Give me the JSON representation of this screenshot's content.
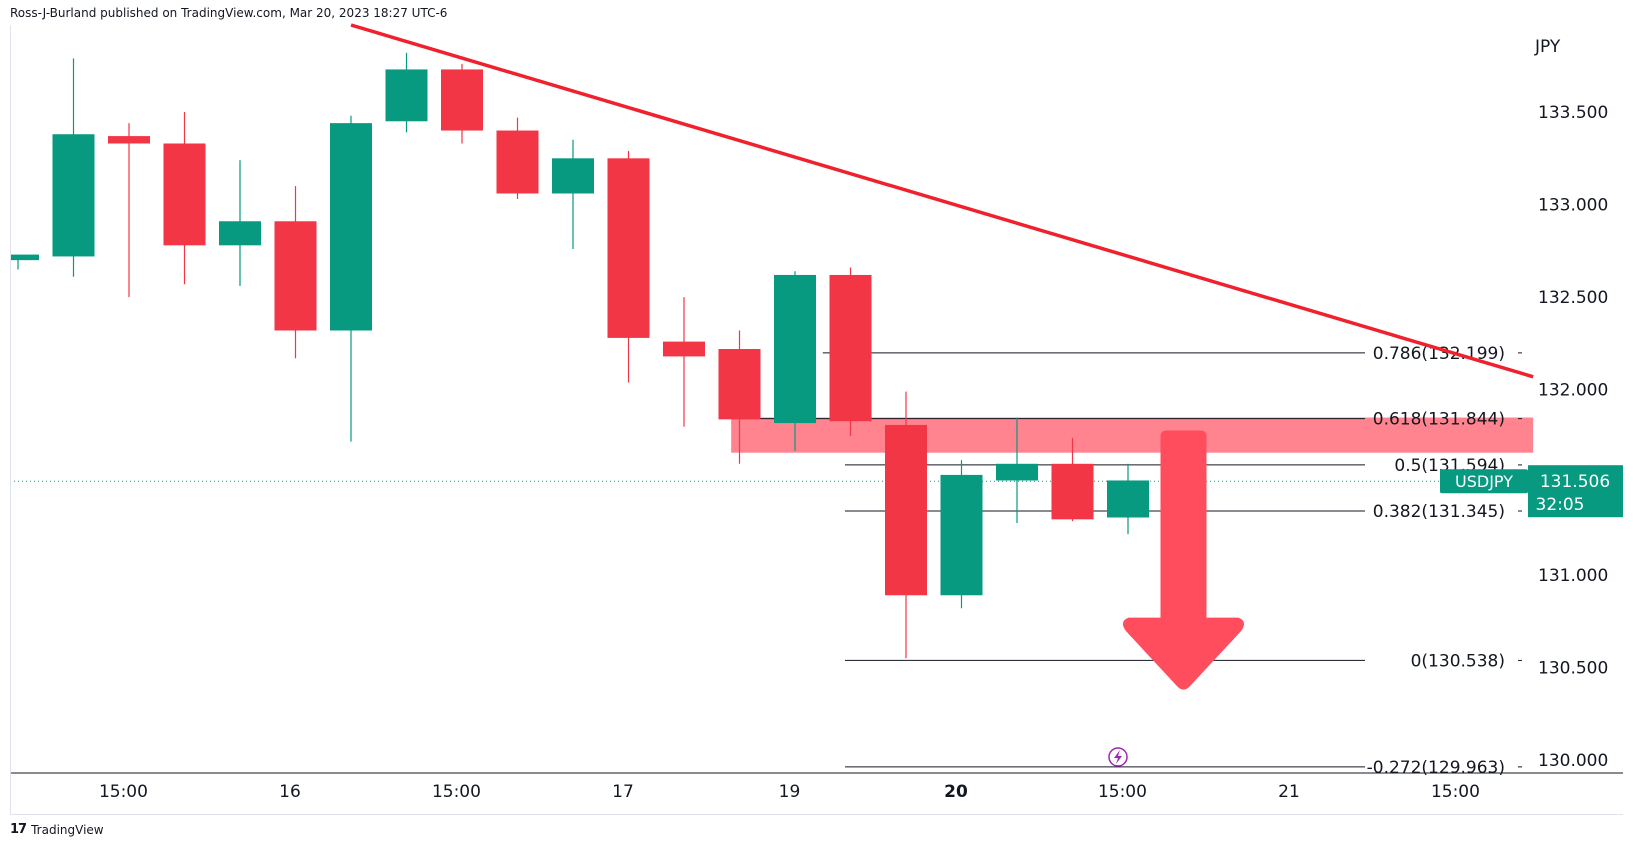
{
  "header": {
    "attribution": "Ross-J-Burland published on TradingView.com, Mar 20, 2023 18:27 UTC-6"
  },
  "footer": {
    "brand": "TradingView",
    "logo_text": "17"
  },
  "colors": {
    "up": "#089981",
    "down": "#f23645",
    "trendline": "#f0202c",
    "zone": "#ff7a85",
    "arrow": "#ff4d5e",
    "grid_text": "#131722",
    "axis": "#131722"
  },
  "chart_data": {
    "type": "candlestick",
    "symbol": "USDJPY",
    "currency": "JPY",
    "ylim": [
      129.93,
      133.97
    ],
    "y_ticks": [
      {
        "value": 133.5,
        "label": "133.500"
      },
      {
        "value": 133.0,
        "label": "133.000"
      },
      {
        "value": 132.5,
        "label": "132.500"
      },
      {
        "value": 132.0,
        "label": "132.000"
      },
      {
        "value": 131.0,
        "label": "131.000"
      },
      {
        "value": 130.5,
        "label": "130.500"
      },
      {
        "value": 130.0,
        "label": "130.000"
      }
    ],
    "x_ticks": [
      {
        "index": 1.9,
        "label": "15:00",
        "bold": false
      },
      {
        "index": 4.9,
        "label": "16",
        "bold": false
      },
      {
        "index": 7.9,
        "label": "15:00",
        "bold": false
      },
      {
        "index": 10.9,
        "label": "17",
        "bold": false
      },
      {
        "index": 13.9,
        "label": "19",
        "bold": false
      },
      {
        "index": 16.9,
        "label": "20",
        "bold": true
      },
      {
        "index": 19.9,
        "label": "15:00",
        "bold": false
      },
      {
        "index": 22.9,
        "label": "21",
        "bold": false
      },
      {
        "index": 25.9,
        "label": "15:00",
        "bold": false
      }
    ],
    "candles": [
      {
        "o": 132.7,
        "h": 132.73,
        "l": 132.65,
        "c": 132.73
      },
      {
        "o": 132.72,
        "h": 133.79,
        "l": 132.61,
        "c": 133.38
      },
      {
        "o": 133.37,
        "h": 133.44,
        "l": 132.5,
        "c": 133.33
      },
      {
        "o": 133.33,
        "h": 133.5,
        "l": 132.57,
        "c": 132.78
      },
      {
        "o": 132.78,
        "h": 133.24,
        "l": 132.56,
        "c": 132.91
      },
      {
        "o": 132.91,
        "h": 133.1,
        "l": 132.17,
        "c": 132.32
      },
      {
        "o": 132.32,
        "h": 133.48,
        "l": 131.72,
        "c": 133.44
      },
      {
        "o": 133.45,
        "h": 133.82,
        "l": 133.39,
        "c": 133.73
      },
      {
        "o": 133.73,
        "h": 133.76,
        "l": 133.33,
        "c": 133.4
      },
      {
        "o": 133.4,
        "h": 133.47,
        "l": 133.03,
        "c": 133.06
      },
      {
        "o": 133.06,
        "h": 133.35,
        "l": 132.76,
        "c": 133.25
      },
      {
        "o": 133.25,
        "h": 133.29,
        "l": 132.04,
        "c": 132.28
      },
      {
        "o": 132.26,
        "h": 132.5,
        "l": 131.8,
        "c": 132.18
      },
      {
        "o": 132.22,
        "h": 132.32,
        "l": 131.6,
        "c": 131.84
      },
      {
        "o": 131.82,
        "h": 132.64,
        "l": 131.67,
        "c": 132.62
      },
      {
        "o": 132.62,
        "h": 132.66,
        "l": 131.75,
        "c": 131.83
      },
      {
        "o": 131.81,
        "h": 131.99,
        "l": 130.55,
        "c": 130.89
      },
      {
        "o": 130.89,
        "h": 131.62,
        "l": 130.82,
        "c": 131.54
      },
      {
        "o": 131.51,
        "h": 131.85,
        "l": 131.28,
        "c": 131.6
      },
      {
        "o": 131.6,
        "h": 131.74,
        "l": 131.29,
        "c": 131.3
      },
      {
        "o": 131.31,
        "h": 131.6,
        "l": 131.22,
        "c": 131.51
      }
    ],
    "fibonacci": [
      {
        "level": "0.786",
        "price": 132.199,
        "label": "0.786(132.199)",
        "start_index": 14.5
      },
      {
        "level": "0.618",
        "price": 131.844,
        "label": "0.618(131.844)",
        "start_index": 13.0
      },
      {
        "level": "0.5",
        "price": 131.594,
        "label": "0.5(131.594)",
        "start_index": 14.9
      },
      {
        "level": "0.382",
        "price": 131.345,
        "label": "0.382(131.345)",
        "start_index": 14.9
      },
      {
        "level": "0",
        "price": 130.538,
        "label": "0(130.538)",
        "start_index": 14.9
      },
      {
        "level": "-0.272",
        "price": 129.963,
        "label": "-0.272(129.963)",
        "start_index": 14.9
      }
    ],
    "resistance_zone": {
      "from_index": 12.85,
      "to_index": 27.3,
      "top": 131.85,
      "bottom": 131.66
    },
    "trendline": {
      "start": {
        "index": 6.0,
        "price": 133.97
      },
      "end": {
        "index": 27.3,
        "price": 132.07
      }
    },
    "arrow": {
      "index": 21.0,
      "from": 131.78,
      "to": 130.38,
      "direction": "down"
    },
    "last_price": {
      "value": 131.506,
      "label": "131.506",
      "countdown": "32:05",
      "symbol_label": "USDJPY"
    }
  }
}
